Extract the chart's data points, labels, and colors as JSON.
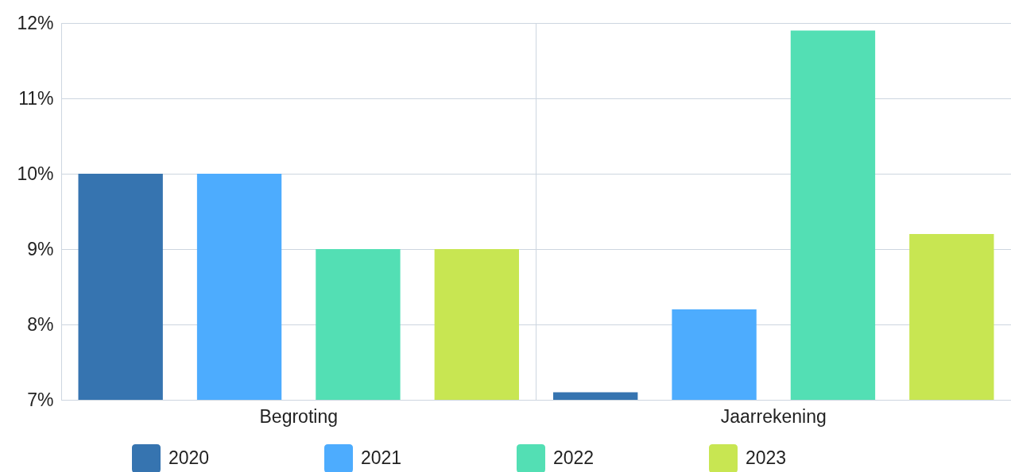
{
  "chart_data": {
    "type": "bar",
    "categories": [
      "Begroting",
      "Jaarrekening"
    ],
    "series": [
      {
        "name": "2020",
        "color": "#3674b0",
        "values": [
          10,
          7.1
        ]
      },
      {
        "name": "2021",
        "color": "#4dacfe",
        "values": [
          10,
          8.2
        ]
      },
      {
        "name": "2022",
        "color": "#53dfb4",
        "values": [
          9,
          11.9
        ]
      },
      {
        "name": "2023",
        "color": "#c8e652",
        "values": [
          9,
          9.2
        ]
      }
    ],
    "ylim": [
      7,
      12
    ],
    "yticks": [
      {
        "value": 7,
        "label": "7%"
      },
      {
        "value": 8,
        "label": "8%"
      },
      {
        "value": 9,
        "label": "9%"
      },
      {
        "value": 10,
        "label": "10%"
      },
      {
        "value": 11,
        "label": "11%"
      },
      {
        "value": 12,
        "label": "12%"
      }
    ],
    "grid": true,
    "legend": "bottom"
  }
}
